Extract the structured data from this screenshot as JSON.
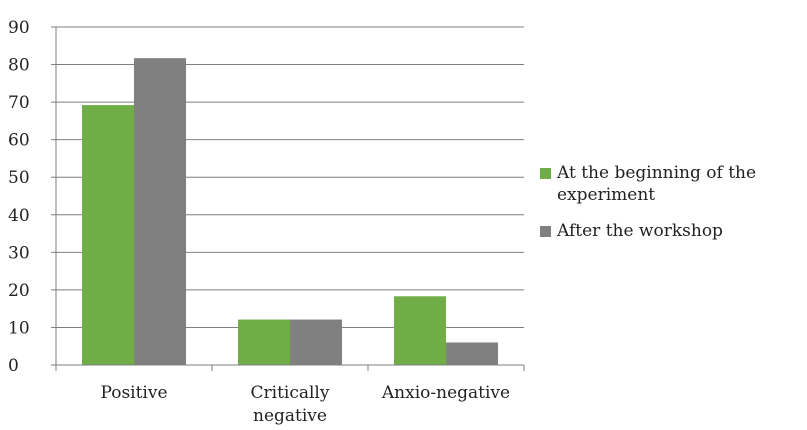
{
  "chart_data": {
    "type": "bar",
    "categories": [
      "Positive",
      "Critically negative",
      "Anxio-negative"
    ],
    "category_lines": [
      [
        "Positive"
      ],
      [
        "Critically",
        "negative"
      ],
      [
        "Anxio-negative"
      ]
    ],
    "series": [
      {
        "name": "At the beginning of the experiment",
        "legend_lines": [
          "At the beginning of the",
          "experiment"
        ],
        "color": "#70ad47",
        "values": [
          69.2,
          12.1,
          18.3
        ]
      },
      {
        "name": "After the workshop",
        "legend_lines": [
          "After the workshop"
        ],
        "color": "#808080",
        "values": [
          81.7,
          12.1,
          6.0
        ]
      }
    ],
    "ylim": [
      0,
      90
    ],
    "yticks": [
      0,
      10,
      20,
      30,
      40,
      50,
      60,
      70,
      80,
      90
    ],
    "grid": true,
    "gridline_color": "#7f7f7f",
    "legend_position": "right",
    "title": "",
    "xlabel": "",
    "ylabel": ""
  }
}
